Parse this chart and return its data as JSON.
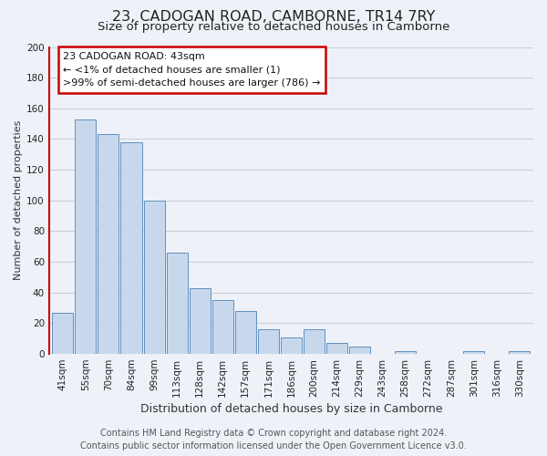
{
  "title": "23, CADOGAN ROAD, CAMBORNE, TR14 7RY",
  "subtitle": "Size of property relative to detached houses in Camborne",
  "xlabel": "Distribution of detached houses by size in Camborne",
  "ylabel": "Number of detached properties",
  "categories": [
    "41sqm",
    "55sqm",
    "70sqm",
    "84sqm",
    "99sqm",
    "113sqm",
    "128sqm",
    "142sqm",
    "157sqm",
    "171sqm",
    "186sqm",
    "200sqm",
    "214sqm",
    "229sqm",
    "243sqm",
    "258sqm",
    "272sqm",
    "287sqm",
    "301sqm",
    "316sqm",
    "330sqm"
  ],
  "values": [
    27,
    153,
    143,
    138,
    100,
    66,
    43,
    35,
    28,
    16,
    11,
    16,
    7,
    5,
    0,
    2,
    0,
    0,
    2,
    0,
    2
  ],
  "bar_color": "#c8d8ec",
  "bar_edge_color": "#6090c0",
  "annotation_box_text": "23 CADOGAN ROAD: 43sqm\n← <1% of detached houses are smaller (1)\n>99% of semi-detached houses are larger (786) →",
  "annotation_box_color": "white",
  "annotation_box_edge_color": "#cc0000",
  "red_line_color": "#cc0000",
  "ylim": [
    0,
    200
  ],
  "yticks": [
    0,
    20,
    40,
    60,
    80,
    100,
    120,
    140,
    160,
    180,
    200
  ],
  "footnote_line1": "Contains HM Land Registry data © Crown copyright and database right 2024.",
  "footnote_line2": "Contains public sector information licensed under the Open Government Licence v3.0.",
  "background_color": "#eef2f8",
  "grid_color": "#c8d0dc",
  "title_fontsize": 11.5,
  "subtitle_fontsize": 9.5,
  "xlabel_fontsize": 9,
  "ylabel_fontsize": 8,
  "tick_fontsize": 7.5,
  "footnote_fontsize": 7,
  "annotation_fontsize": 8
}
